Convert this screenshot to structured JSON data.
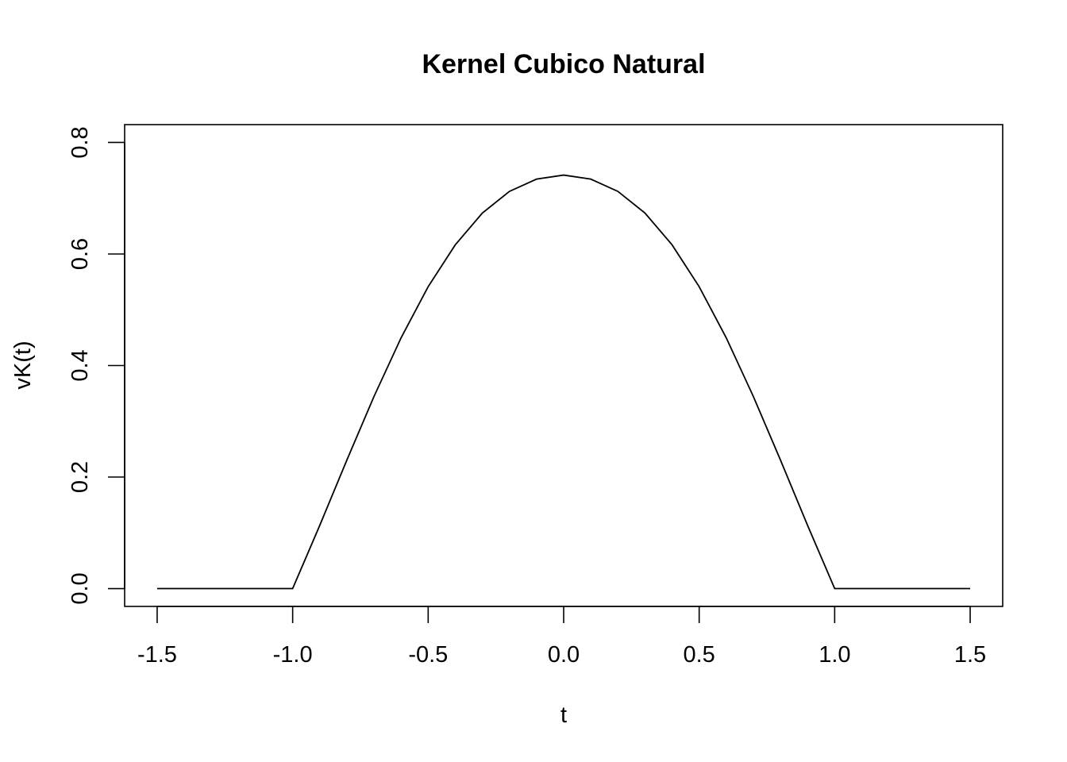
{
  "chart_data": {
    "type": "line",
    "title": "Kernel Cubico Natural",
    "xlabel": "t",
    "ylabel": "vK(t)",
    "xlim": [
      -1.62,
      1.62
    ],
    "ylim": [
      -0.032,
      0.832
    ],
    "xticks": [
      -1.5,
      -1.0,
      -0.5,
      0.0,
      0.5,
      1.0,
      1.5
    ],
    "xtick_labels": [
      "-1.5",
      "-1.0",
      "-0.5",
      "0.0",
      "0.5",
      "1.0",
      "1.5"
    ],
    "yticks": [
      0.0,
      0.2,
      0.4,
      0.6,
      0.8
    ],
    "ytick_labels": [
      "0.0",
      "0.2",
      "0.4",
      "0.6",
      "0.8"
    ],
    "grid": false,
    "series": [
      {
        "color": "#000000",
        "x": [
          -1.5,
          -1.25,
          -1.0,
          -0.9,
          -0.8,
          -0.7,
          -0.6,
          -0.5,
          -0.4,
          -0.3,
          -0.2,
          -0.1,
          0.0,
          0.1,
          0.2,
          0.3,
          0.4,
          0.5,
          0.6,
          0.7,
          0.8,
          0.9,
          1.0,
          1.25,
          1.5
        ],
        "y": [
          0.0,
          0.0,
          0.0,
          0.1134,
          0.2304,
          0.3444,
          0.4496,
          0.5414,
          0.6164,
          0.6734,
          0.7123,
          0.7343,
          0.7415,
          0.7343,
          0.7123,
          0.6734,
          0.6164,
          0.5414,
          0.4496,
          0.3444,
          0.2304,
          0.1134,
          0.0,
          0.0,
          0.0
        ]
      }
    ]
  }
}
